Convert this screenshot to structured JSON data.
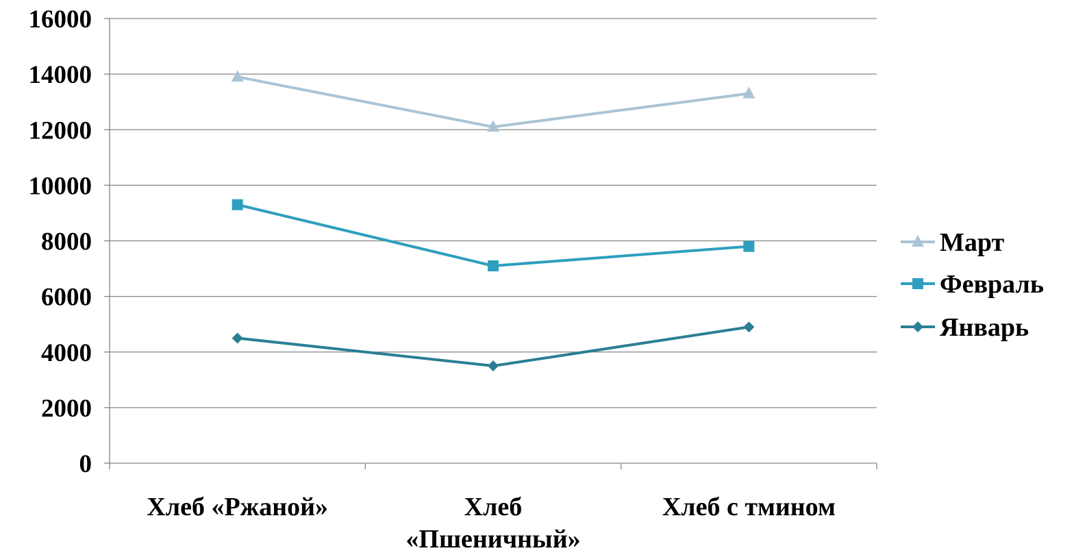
{
  "chart_data": {
    "type": "line",
    "categories": [
      [
        "Хлеб «Ржаной»"
      ],
      [
        "Хлеб",
        "«Пшеничный»"
      ],
      [
        "Хлеб с тмином"
      ]
    ],
    "series": [
      {
        "name": "Март",
        "values": [
          13900,
          12100,
          13300
        ],
        "color": "#a9c4d4",
        "marker": "triangle"
      },
      {
        "name": "Февраль",
        "values": [
          9300,
          7100,
          7800
        ],
        "color": "#2e9fbf",
        "marker": "square"
      },
      {
        "name": "Январь",
        "values": [
          4500,
          3500,
          4900
        ],
        "color": "#2a7f94",
        "marker": "diamond"
      }
    ],
    "ylim": [
      0,
      16000
    ],
    "yticks": [
      0,
      2000,
      4000,
      6000,
      8000,
      10000,
      12000,
      14000,
      16000
    ],
    "grid": true,
    "legend": "right",
    "title": "",
    "xlabel": "",
    "ylabel": ""
  }
}
